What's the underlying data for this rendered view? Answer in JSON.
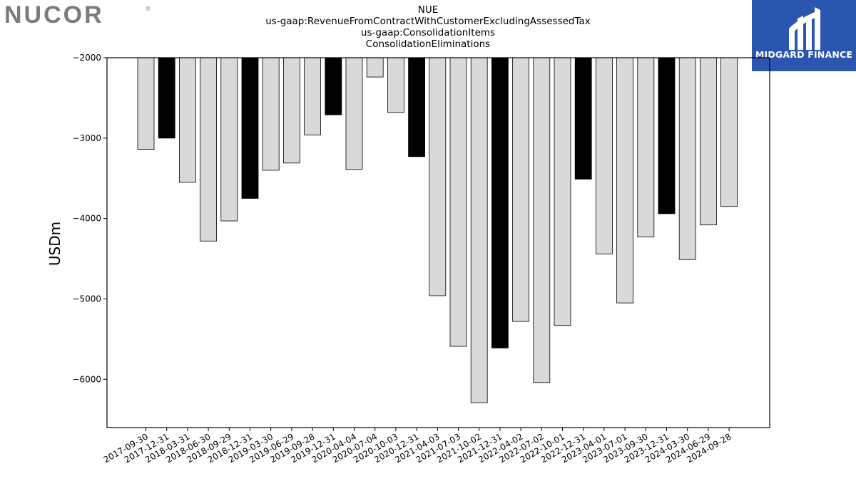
{
  "header": {
    "left_logo_text": "NUCOR",
    "left_logo_mark": "®",
    "right_logo_text": "MIDGARD FINANCE",
    "right_logo_color": "#2a56b0",
    "left_logo_color": "#7a7b7e"
  },
  "chart_data": {
    "type": "bar",
    "title_lines": [
      "NUE",
      "us-gaap:RevenueFromContractWithCustomerExcludingAssessedTax",
      "us-gaap:ConsolidationItems",
      "ConsolidationEliminations"
    ],
    "ylabel": "USDm",
    "xlabel": "",
    "ylim": [
      -6600,
      -2000
    ],
    "yticks": [
      -2000,
      -3000,
      -4000,
      -5000,
      -6000
    ],
    "ytick_labels": [
      "−2000",
      "−3000",
      "−4000",
      "−5000",
      "−6000"
    ],
    "bar_colors": {
      "quarter": "#d9d9d9",
      "year_end": "#000000",
      "edge": "#000000"
    },
    "categories": [
      "2017-09-30",
      "2017-12-31",
      "2018-03-31",
      "2018-06-30",
      "2018-09-29",
      "2018-12-31",
      "2019-03-30",
      "2019-06-29",
      "2019-09-28",
      "2019-12-31",
      "2020-04-04",
      "2020-07-04",
      "2020-10-03",
      "2020-12-31",
      "2021-04-03",
      "2021-07-03",
      "2021-10-02",
      "2021-12-31",
      "2022-04-02",
      "2022-07-02",
      "2022-10-01",
      "2022-12-31",
      "2023-04-01",
      "2023-07-01",
      "2023-09-30",
      "2023-12-31",
      "2024-03-30",
      "2024-06-29",
      "2024-09-28"
    ],
    "values": [
      -3140,
      -3000,
      -3550,
      -4280,
      -4030,
      -3750,
      -3400,
      -3310,
      -2960,
      -2710,
      -3390,
      -2240,
      -2680,
      -3230,
      -4960,
      -5590,
      -6290,
      -5610,
      -5280,
      -6040,
      -5330,
      -3510,
      -4440,
      -5050,
      -4230,
      -3940,
      -4510,
      -4080,
      -3850
    ],
    "highlight": [
      false,
      true,
      false,
      false,
      false,
      true,
      false,
      false,
      false,
      true,
      false,
      false,
      false,
      true,
      false,
      false,
      false,
      true,
      false,
      false,
      false,
      true,
      false,
      false,
      false,
      true,
      false,
      false,
      false
    ]
  }
}
